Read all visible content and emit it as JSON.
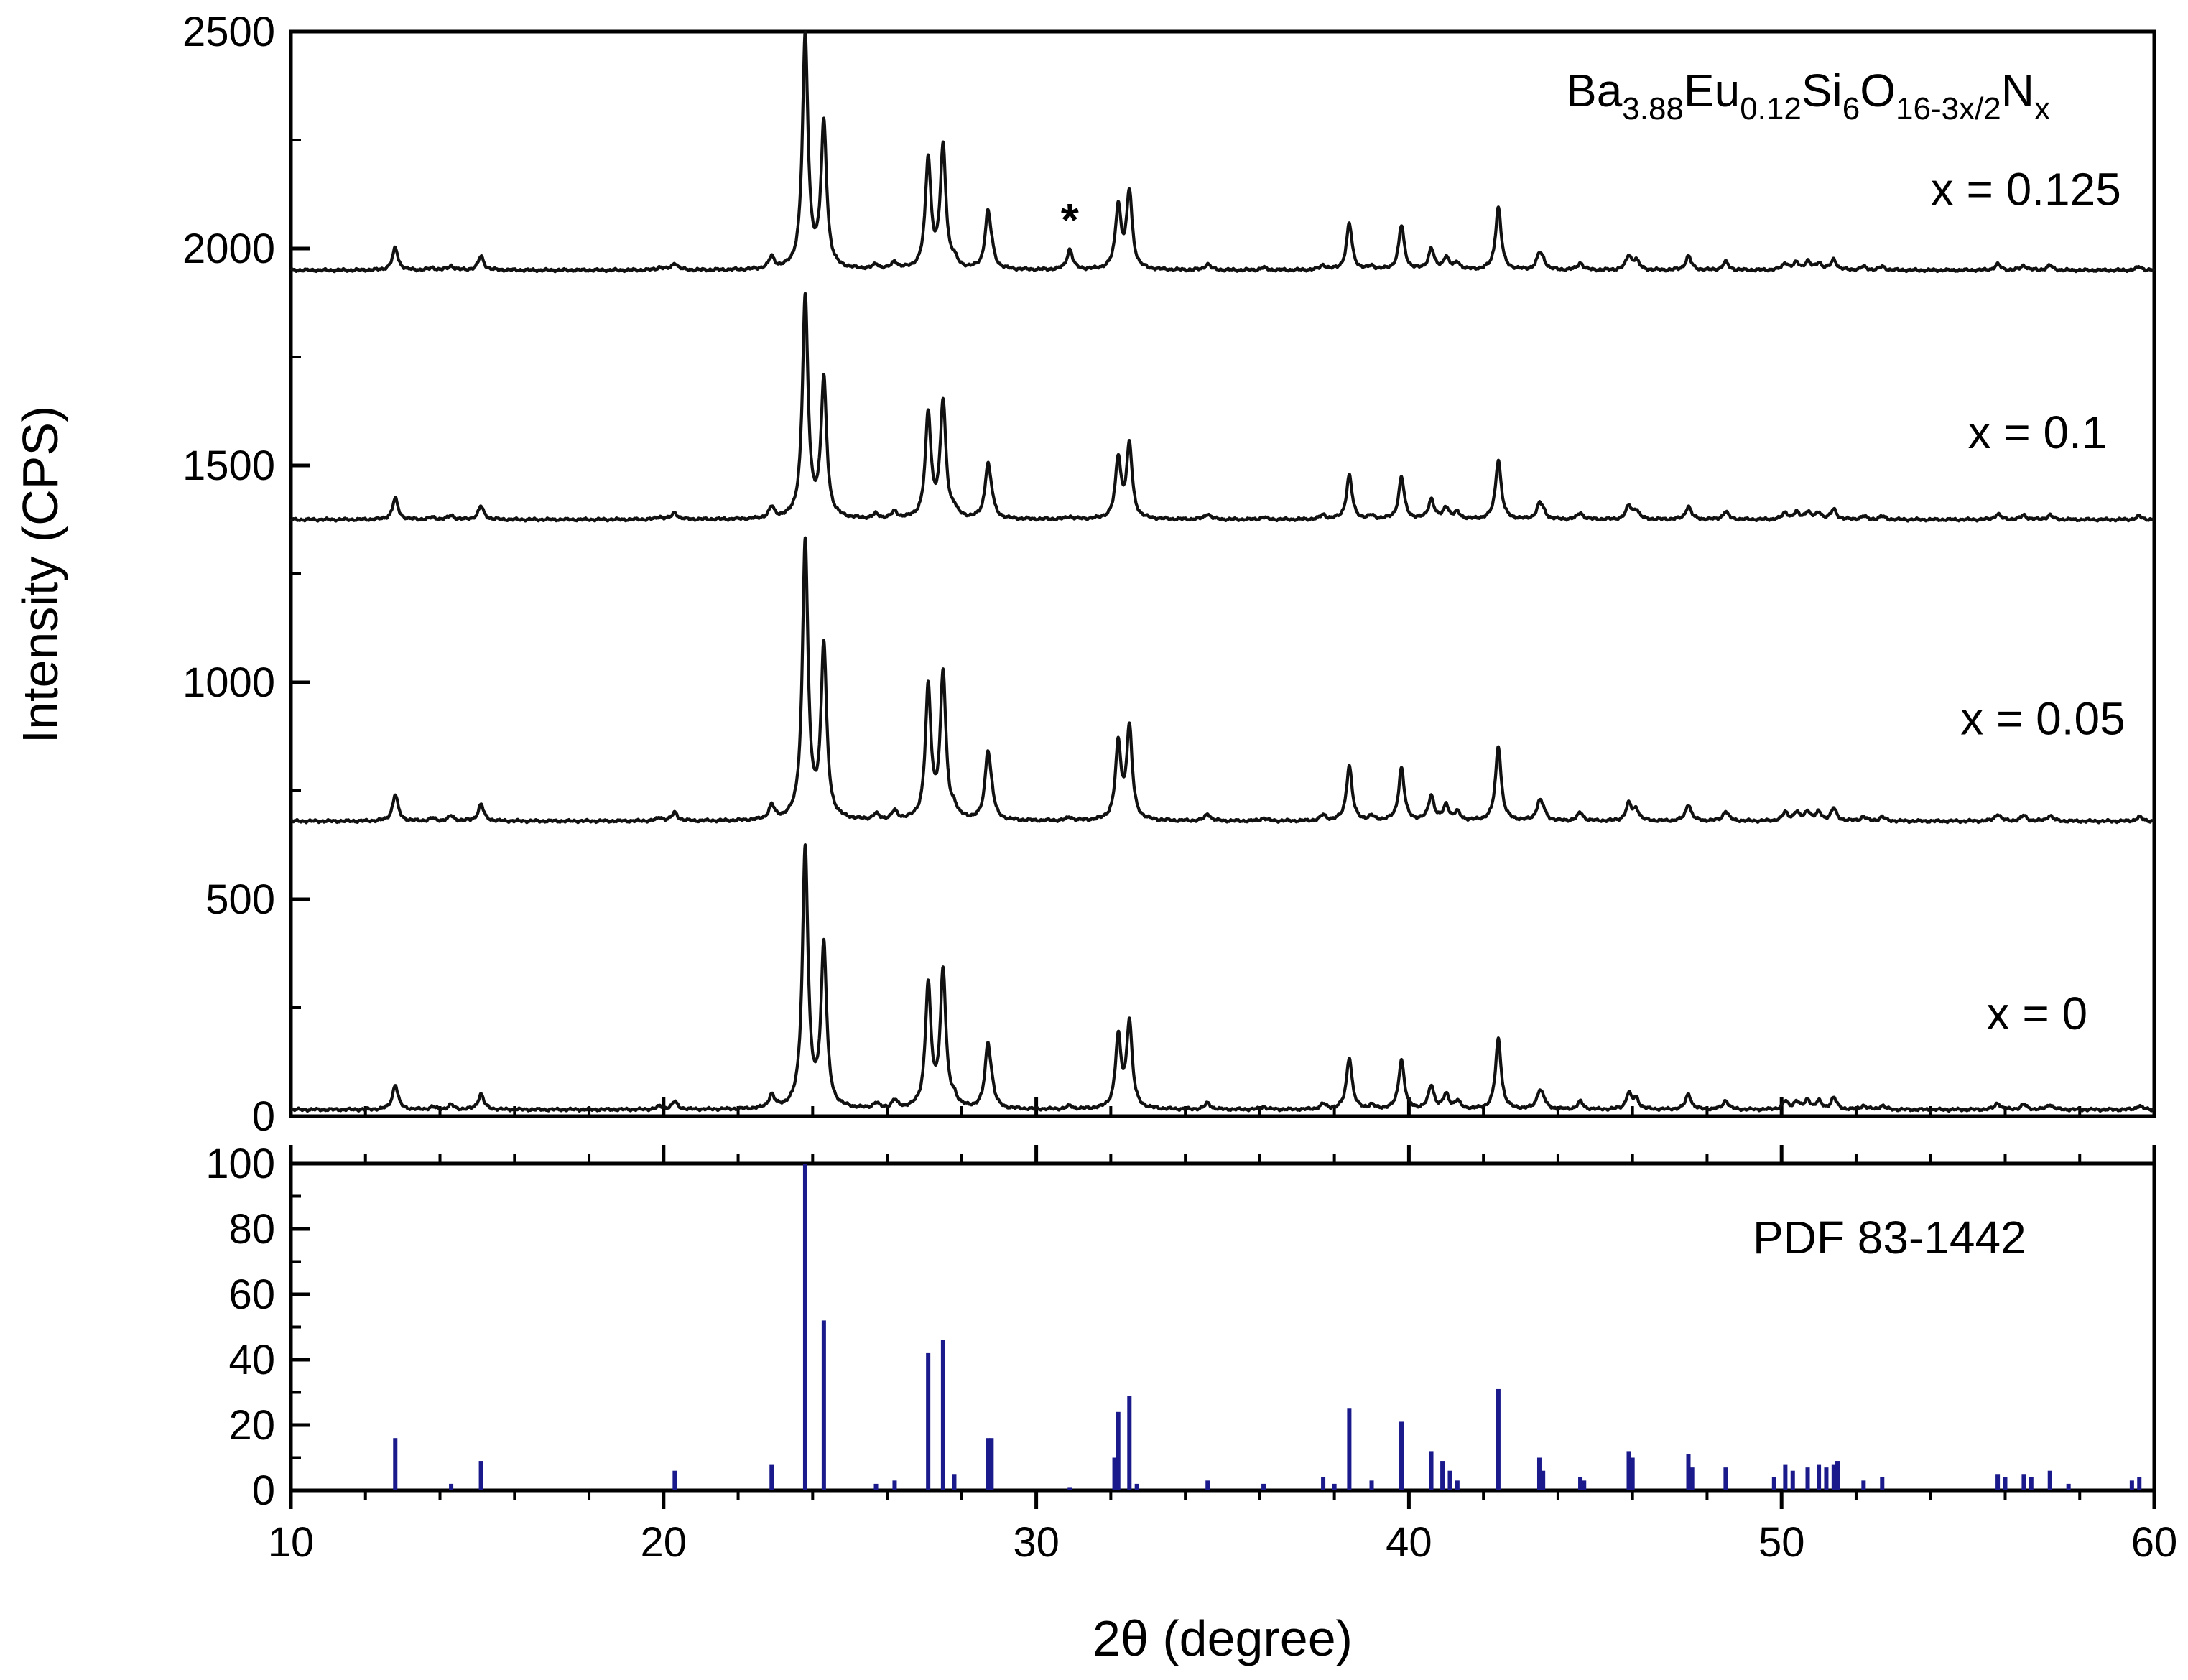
{
  "chart_data": [
    {
      "type": "line",
      "panel": "xrd-patterns",
      "ylabel": "Intensity (CPS)",
      "xlim": [
        10,
        60
      ],
      "ylim": [
        0,
        2500
      ],
      "xticks": [
        10,
        20,
        30,
        40,
        50,
        60
      ],
      "yticks": [
        0,
        500,
        1000,
        1500,
        2000,
        2500
      ],
      "formula": {
        "base1": "Ba",
        "sub1": "3.88",
        "base2": "Eu",
        "sub2": "0.12",
        "base3": "Si",
        "sub3": "6",
        "base4": "O",
        "sub4": "16-3x/2",
        "base5": "N",
        "sub5": "x"
      },
      "annotation": "*",
      "annotation_x": 30.9,
      "peaks": [
        [
          12.8,
          0.095
        ],
        [
          13.8,
          0.01
        ],
        [
          14.3,
          0.018
        ],
        [
          15.1,
          0.06
        ],
        [
          19.9,
          0.012
        ],
        [
          20.3,
          0.03
        ],
        [
          22.9,
          0.05
        ],
        [
          23.8,
          1.0
        ],
        [
          24.3,
          0.62
        ],
        [
          25.7,
          0.02
        ],
        [
          26.2,
          0.03
        ],
        [
          27.1,
          0.47
        ],
        [
          27.5,
          0.52
        ],
        [
          27.8,
          0.03
        ],
        [
          28.7,
          0.23
        ],
        [
          28.8,
          0.05
        ],
        [
          30.9,
          0.012
        ],
        [
          32.2,
          0.27
        ],
        [
          32.5,
          0.33
        ],
        [
          34.6,
          0.025
        ],
        [
          36.1,
          0.01
        ],
        [
          37.7,
          0.02
        ],
        [
          38.4,
          0.2
        ],
        [
          39.0,
          0.015
        ],
        [
          39.8,
          0.19
        ],
        [
          40.6,
          0.09
        ],
        [
          41.0,
          0.055
        ],
        [
          41.3,
          0.03
        ],
        [
          42.4,
          0.27
        ],
        [
          43.5,
          0.06
        ],
        [
          43.6,
          0.03
        ],
        [
          44.6,
          0.03
        ],
        [
          45.9,
          0.06
        ],
        [
          46.1,
          0.04
        ],
        [
          47.5,
          0.06
        ],
        [
          48.5,
          0.035
        ],
        [
          50.1,
          0.03
        ],
        [
          50.4,
          0.03
        ],
        [
          50.7,
          0.035
        ],
        [
          51.0,
          0.03
        ],
        [
          51.4,
          0.045
        ],
        [
          52.2,
          0.015
        ],
        [
          52.7,
          0.015
        ],
        [
          55.8,
          0.025
        ],
        [
          56.5,
          0.02
        ],
        [
          57.2,
          0.02
        ],
        [
          59.6,
          0.015
        ]
      ],
      "series": [
        {
          "name": "x = 0",
          "baseline": 15,
          "scale": 600,
          "star_height": 0,
          "label_x": 55.5,
          "label_y": 200
        },
        {
          "name": "x = 0.05",
          "baseline": 680,
          "scale": 640,
          "star_height": 0,
          "label_x": 54.8,
          "label_y": 880
        },
        {
          "name": "x = 0.1",
          "baseline": 1375,
          "scale": 510,
          "star_height": 0,
          "label_x": 55.0,
          "label_y": 1540
        },
        {
          "name": "x = 0.125",
          "baseline": 1950,
          "scale": 535,
          "star_height": 40,
          "label_x": 54.0,
          "label_y": 2100
        }
      ]
    },
    {
      "type": "bar",
      "panel": "reference-pattern",
      "name": "PDF 83-1442",
      "xlabel": "2θ (degree)",
      "xlim": [
        10,
        60
      ],
      "ylim": [
        0,
        100
      ],
      "xticks": [
        10,
        20,
        30,
        40,
        50,
        60
      ],
      "yticks": [
        0,
        20,
        40,
        60,
        80,
        100
      ],
      "x": [
        12.8,
        14.3,
        15.1,
        20.3,
        22.9,
        23.8,
        24.3,
        25.7,
        26.2,
        27.1,
        27.5,
        27.8,
        28.7,
        28.8,
        30.9,
        32.1,
        32.2,
        32.5,
        32.7,
        34.6,
        36.1,
        37.7,
        38.0,
        38.4,
        39.0,
        39.8,
        40.6,
        40.9,
        41.1,
        41.3,
        42.4,
        43.5,
        43.6,
        44.6,
        44.7,
        45.9,
        46.0,
        47.5,
        47.6,
        48.5,
        49.8,
        50.1,
        50.3,
        50.7,
        51.0,
        51.2,
        51.4,
        51.5,
        52.2,
        52.7,
        55.8,
        56.0,
        56.5,
        56.7,
        57.2,
        57.7,
        59.4,
        59.6
      ],
      "values": [
        16,
        2,
        9,
        6,
        8,
        100,
        52,
        2,
        3,
        42,
        46,
        5,
        16,
        16,
        1,
        10,
        24,
        29,
        2,
        3,
        2,
        4,
        2,
        25,
        3,
        21,
        12,
        9,
        6,
        3,
        31,
        10,
        6,
        4,
        3,
        12,
        10,
        11,
        7,
        7,
        4,
        8,
        6,
        7,
        8,
        7,
        8,
        9,
        3,
        4,
        5,
        4,
        5,
        4,
        6,
        2,
        3,
        4
      ]
    }
  ]
}
